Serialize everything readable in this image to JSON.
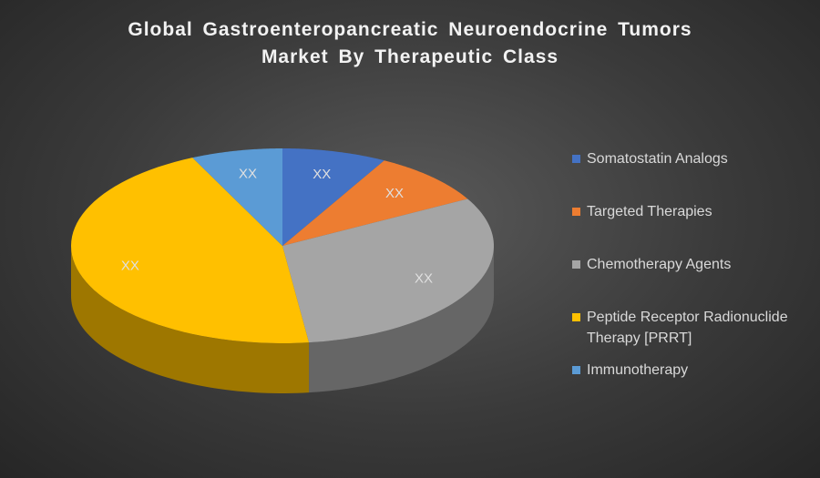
{
  "chart_data": {
    "type": "pie3d",
    "title": "Global Gastroenteropancreatic Neuroendocrine Tumors Market By Therapeutic Class",
    "categories": [
      "Somatostatin Analogs",
      "Targeted Therapies",
      "Chemotherapy Agents",
      "Peptide Receptor Radionuclide Therapy [PRRT]",
      "Immunotherapy"
    ],
    "values": [
      8,
      9,
      31,
      45,
      7
    ],
    "value_labels": [
      "XX",
      "XX",
      "XX",
      "XX",
      "XX"
    ],
    "colors": [
      "#4472c4",
      "#ed7d31",
      "#a5a5a5",
      "#ffc000",
      "#5b9bd5"
    ],
    "legend": "right"
  }
}
